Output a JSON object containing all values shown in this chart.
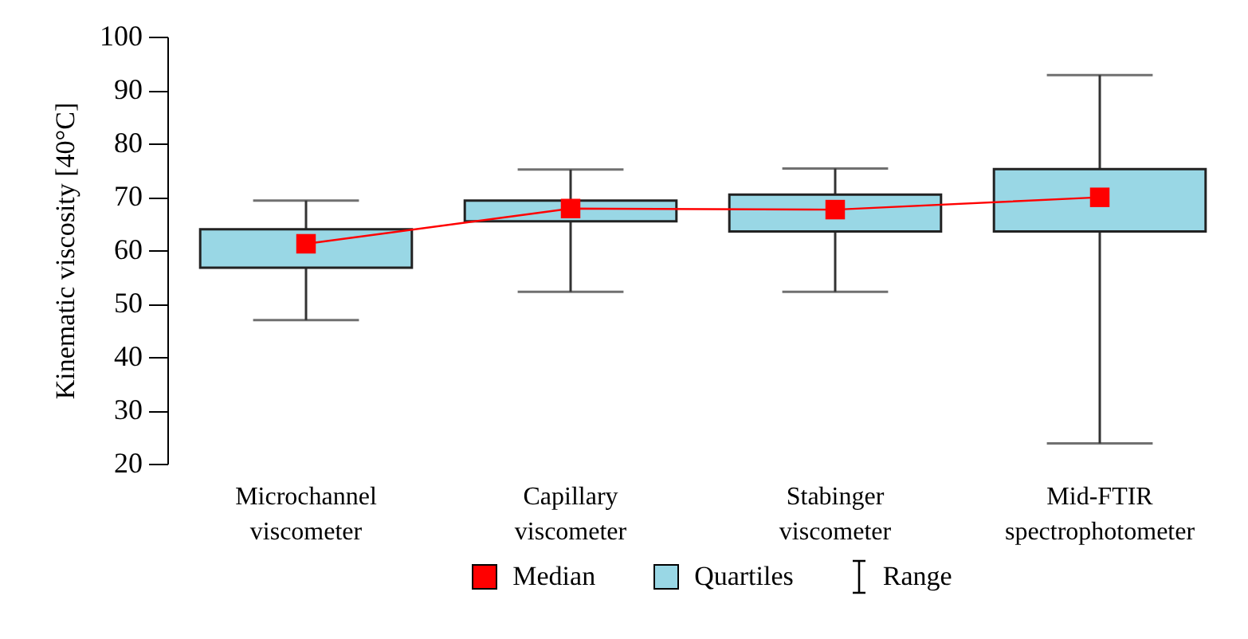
{
  "chart_data": {
    "type": "line",
    "ylabel": "Kinematic viscosity [40°C]",
    "categories": [
      "Microchannel viscometer",
      "Capillary viscometer",
      "Stabinger viscometer",
      "Mid-FTIR spectrophotometer"
    ],
    "ylim": [
      20,
      100
    ],
    "yticks": [
      20,
      30,
      40,
      50,
      60,
      70,
      80,
      90,
      100
    ],
    "grid": false,
    "legend": "bottom",
    "annotations": [
      "Range"
    ],
    "series": [
      {
        "name": "Quartiles",
        "type": "box",
        "color": "#99d7e5",
        "boxes": [
          {
            "low": 46.9,
            "q1": 56.7,
            "median": 61.2,
            "q3": 63.9,
            "high": 69.3
          },
          {
            "low": 52.2,
            "q1": 65.4,
            "median": 67.8,
            "q3": 69.3,
            "high": 75.1
          },
          {
            "low": 52.2,
            "q1": 63.5,
            "median": 67.6,
            "q3": 70.4,
            "high": 75.3
          },
          {
            "low": 23.8,
            "q1": 63.5,
            "median": 69.9,
            "q3": 75.2,
            "high": 92.8
          }
        ]
      },
      {
        "name": "Median",
        "color": "#ff0000",
        "values": [
          61.2,
          67.8,
          67.6,
          69.9
        ]
      }
    ]
  }
}
